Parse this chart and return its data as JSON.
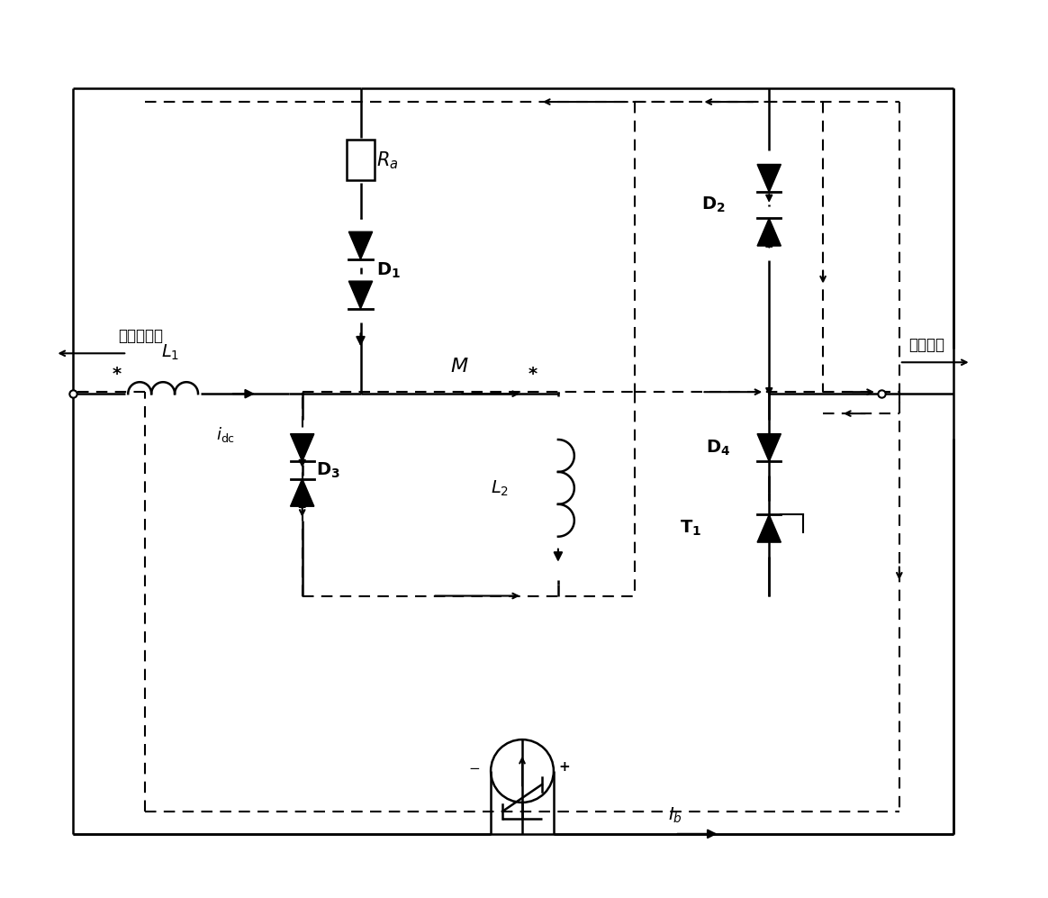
{
  "fig_width": 11.64,
  "fig_height": 9.97,
  "bg_color": "#ffffff",
  "line_color": "#000000",
  "dashed_color": "#000000",
  "component_color": "#000000",
  "labels": {
    "Ra": "$R_a$",
    "D1": "$\\mathbf{D_1}$",
    "D2": "$\\mathbf{D_2}$",
    "D3": "$\\mathbf{D_3}$",
    "D4": "$\\mathbf{D_4}$",
    "T1": "$\\mathbf{T_1}$",
    "L1": "$\\mathit{L_1}$",
    "L2": "$\\mathit{L_2}$",
    "M": "$\\mathit{M}$",
    "Ib": "$\\mathit{I_b}$",
    "idc": "$\\mathit{i}_{\\mathrm{dc}}$",
    "left_dir": "换流站方向",
    "right_dir": "线路方向"
  }
}
